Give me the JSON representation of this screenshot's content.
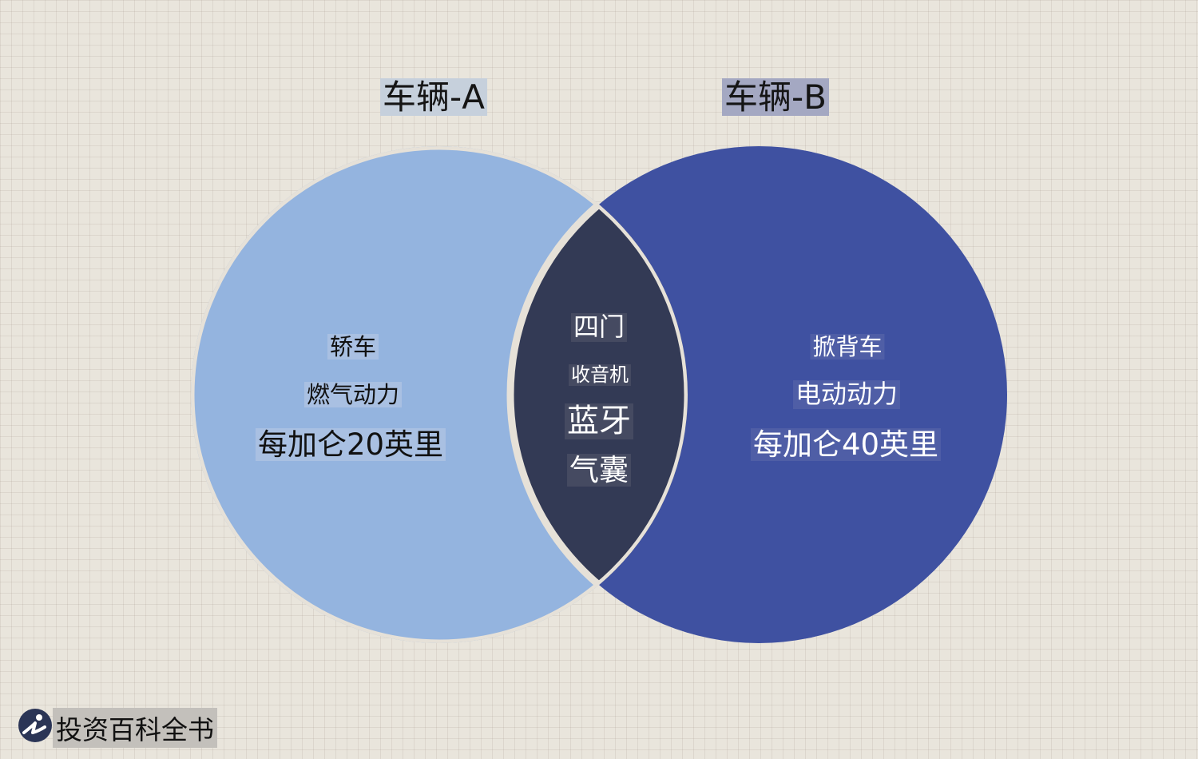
{
  "venn": {
    "set_a": {
      "title": "车辆-A",
      "items": [
        "轿车",
        "燃气动力",
        "每加仑20英里"
      ],
      "color": "#94b4df"
    },
    "set_b": {
      "title": "车辆-B",
      "items": [
        "掀背车",
        "电动动力",
        "每加仑40英里"
      ],
      "color": "#3f51a1"
    },
    "intersection": {
      "items": [
        "四门",
        "收音机",
        "蓝牙",
        "气囊"
      ],
      "color": "#333a55"
    },
    "divider_color": "#e6e1d8"
  },
  "branding": {
    "logo_text": "投资百科全书",
    "logo_icon": "investopedia-logo-icon",
    "logo_color": "#2b3556"
  }
}
